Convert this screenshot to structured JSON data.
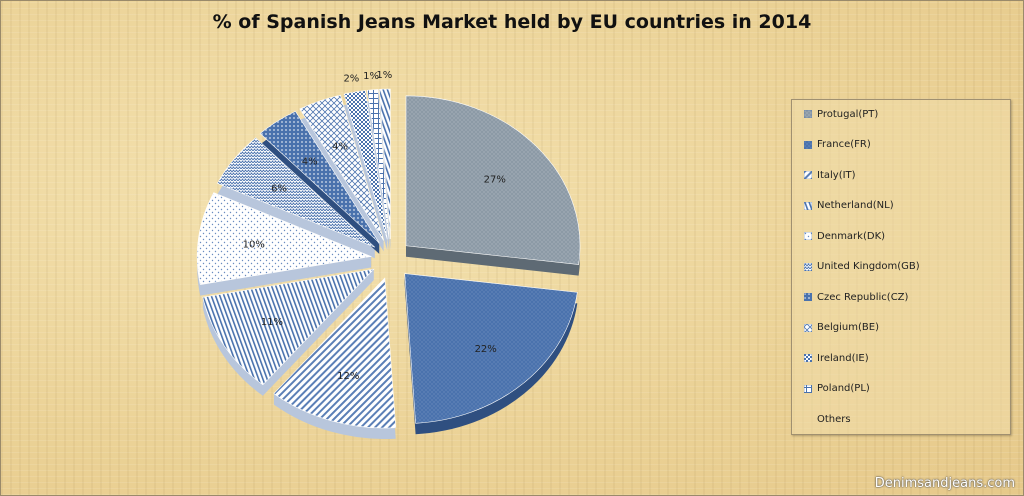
{
  "title": "% of Spanish Jeans Market held by EU countries in 2014",
  "watermark": "Denimsandjeans.com",
  "chart_data": {
    "type": "pie",
    "title": "% of Spanish Jeans Market held by EU countries in 2014",
    "exploded": true,
    "three_d": true,
    "legend_position": "right",
    "slices": [
      {
        "name": "Protugal(PT)",
        "value": 27,
        "label": "27%",
        "color": "#8c9aa6",
        "pattern": "dots"
      },
      {
        "name": "France(FR)",
        "value": 22,
        "label": "22%",
        "color": "#4a72ad",
        "pattern": "dots"
      },
      {
        "name": "Italy(IT)",
        "value": 12,
        "label": "12%",
        "color": "#ffffff",
        "pattern": "diagonal"
      },
      {
        "name": "Netherland(NL)",
        "value": 11,
        "label": "11%",
        "color": "#ffffff",
        "pattern": "vertical"
      },
      {
        "name": "Denmark(DK)",
        "value": 10,
        "label": "10%",
        "color": "#ffffff",
        "pattern": "sparse-dots"
      },
      {
        "name": "United Kingdom(GB)",
        "value": 6,
        "label": "6%",
        "color": "#ffffff",
        "pattern": "zigzag"
      },
      {
        "name": "Czec Republic(CZ)",
        "value": 4,
        "label": "4%",
        "color": "#4a72ad",
        "pattern": "grid"
      },
      {
        "name": "Belgium(BE)",
        "value": 4,
        "label": "4%",
        "color": "#ffffff",
        "pattern": "diamond"
      },
      {
        "name": "Ireland(IE)",
        "value": 2,
        "label": "2%",
        "color": "#ffffff",
        "pattern": "check"
      },
      {
        "name": "Poland(PL)",
        "value": 1,
        "label": "1%",
        "color": "#ffffff",
        "pattern": "cross"
      },
      {
        "name": "Others",
        "value": 1,
        "label": "1%",
        "color": "#ffffff",
        "pattern": "vertical"
      }
    ]
  }
}
